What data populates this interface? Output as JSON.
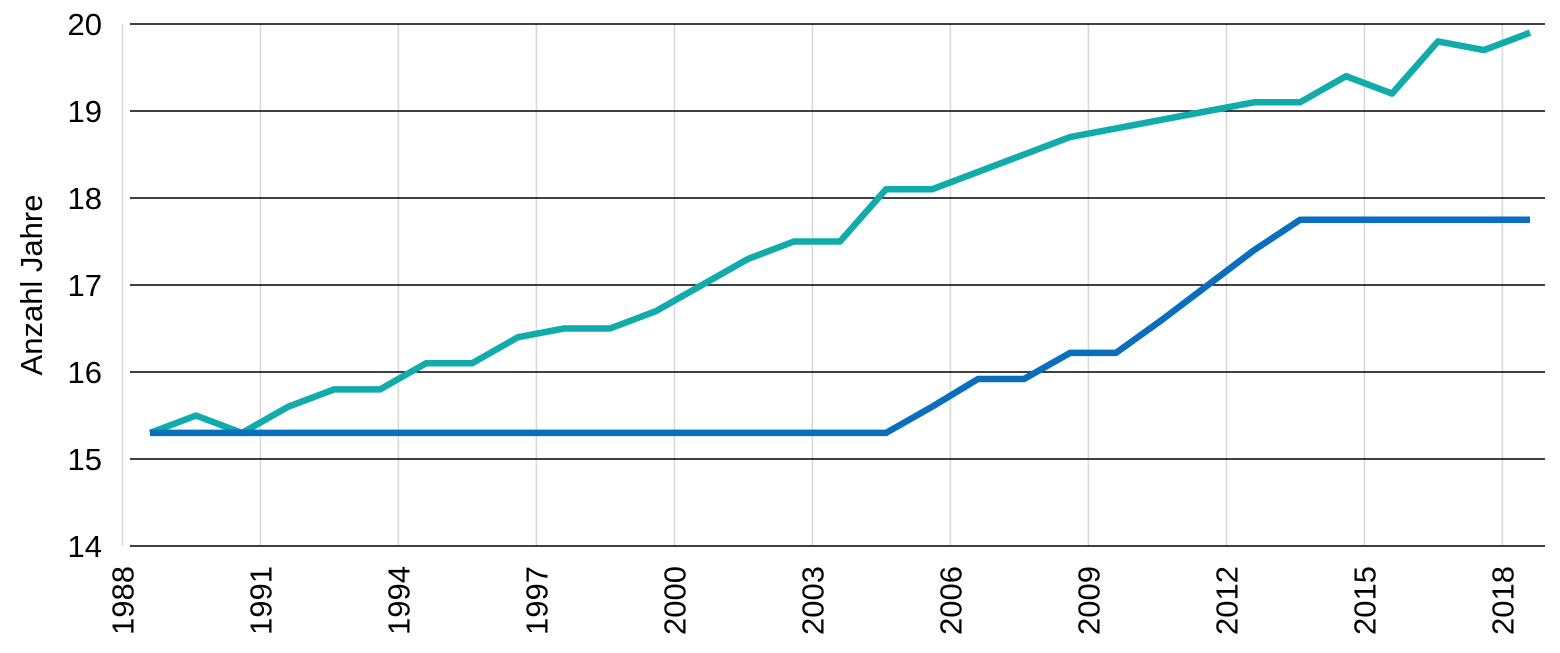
{
  "chart_data": {
    "type": "line",
    "ylabel": "Anzahl Jahre",
    "xlabel": "",
    "title": "",
    "x": [
      1988,
      1989,
      1990,
      1991,
      1992,
      1993,
      1994,
      1995,
      1996,
      1997,
      1998,
      1999,
      2000,
      2001,
      2002,
      2003,
      2004,
      2005,
      2006,
      2007,
      2008,
      2009,
      2010,
      2011,
      2012,
      2013,
      2014,
      2015,
      2016,
      2017,
      2018
    ],
    "x_tick_labels": [
      "1988",
      "1991",
      "1994",
      "1997",
      "2000",
      "2003",
      "2006",
      "2009",
      "2012",
      "2015",
      "2018"
    ],
    "y_tick_labels": [
      "14",
      "15",
      "16",
      "17",
      "18",
      "19",
      "20"
    ],
    "xlim": [
      1988,
      2018
    ],
    "ylim": [
      14,
      20
    ],
    "grid": {
      "horizontal": true,
      "vertical": true
    },
    "legend": "none",
    "series": [
      {
        "color": "#12ABAB",
        "values": [
          15.3,
          15.5,
          15.3,
          15.6,
          15.8,
          15.8,
          16.1,
          16.1,
          16.4,
          16.5,
          16.5,
          16.7,
          17.0,
          17.3,
          17.5,
          17.5,
          18.1,
          18.1,
          18.3,
          18.5,
          18.7,
          18.8,
          18.9,
          19.0,
          19.1,
          19.1,
          19.4,
          19.2,
          19.8,
          19.7,
          19.9
        ]
      },
      {
        "color": "#0A6EBD",
        "values": [
          15.3,
          15.3,
          15.3,
          15.3,
          15.3,
          15.3,
          15.3,
          15.3,
          15.3,
          15.3,
          15.3,
          15.3,
          15.3,
          15.3,
          15.3,
          15.3,
          15.3,
          15.6,
          15.92,
          15.92,
          16.22,
          16.22,
          16.6,
          17.0,
          17.4,
          17.75,
          17.75,
          17.75,
          17.75,
          17.75,
          17.75
        ]
      }
    ]
  }
}
